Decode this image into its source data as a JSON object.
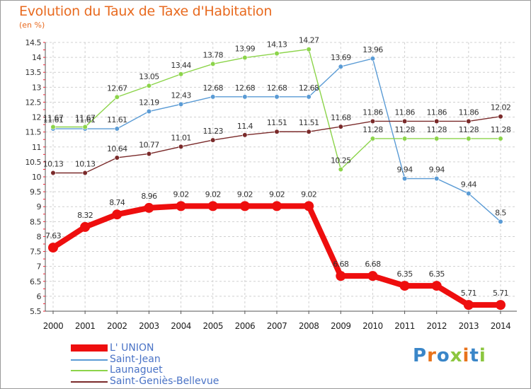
{
  "title": "Evolution du Taux de Taxe d'Habitation",
  "subtitle": "(en %)",
  "logo": {
    "letters": [
      "P",
      "r",
      "o",
      "x",
      "i",
      "t",
      "i"
    ],
    "colors": [
      "#3a86c8",
      "#e8731c",
      "#3a86c8",
      "#8cc63f",
      "#e8731c",
      "#3a86c8",
      "#8cc63f"
    ]
  },
  "chart_data": {
    "type": "line",
    "x": [
      "2000",
      "2001",
      "2002",
      "2003",
      "2004",
      "2005",
      "2006",
      "2007",
      "2008",
      "2009",
      "2010",
      "2011",
      "2012",
      "2013",
      "2014"
    ],
    "ylim": [
      5.5,
      14.5
    ],
    "yticks": [
      "5.5",
      "6",
      "6.5",
      "7",
      "7.5",
      "8",
      "8.5",
      "9",
      "9.5",
      "10",
      "10.5",
      "11",
      "11.5",
      "12",
      "12.5",
      "13",
      "13.5",
      "14",
      "14.5"
    ],
    "grid": true,
    "legend_position": "bottom-left",
    "series": [
      {
        "name": "Saint-Jean",
        "color": "#5a9bd5",
        "values": [
          11.61,
          11.61,
          11.61,
          12.19,
          12.43,
          12.68,
          12.68,
          12.68,
          12.68,
          13.69,
          13.96,
          9.94,
          9.94,
          9.44,
          8.5
        ],
        "labels": [
          "11.61",
          "11.61",
          "11.61",
          "12.19",
          "12.43",
          "12.68",
          "12.68",
          "12.68",
          "12.68",
          "13.69",
          "13.96",
          "9.94",
          "9.94",
          "9.44",
          "8.5"
        ]
      },
      {
        "name": "Launaguet",
        "color": "#8cd44a",
        "values": [
          11.67,
          11.67,
          12.67,
          13.05,
          13.44,
          13.78,
          13.99,
          14.13,
          14.27,
          10.25,
          11.28,
          11.28,
          11.28,
          11.28,
          11.28
        ],
        "labels": [
          "11.67",
          "11.67",
          "12.67",
          "13.05",
          "13.44",
          "13.78",
          "13.99",
          "14.13",
          "14.27",
          "10.25",
          "11.28",
          "11.28",
          "11.28",
          "11.28",
          "11.28"
        ]
      },
      {
        "name": "Saint-Geniès-Bellevue",
        "color": "#7a2a2a",
        "values": [
          10.13,
          10.13,
          10.64,
          10.77,
          11.01,
          11.23,
          11.4,
          11.51,
          11.51,
          11.68,
          11.86,
          11.86,
          11.86,
          11.86,
          12.02
        ],
        "labels": [
          "10.13",
          "10.13",
          "10.64",
          "10.77",
          "11.01",
          "11.23",
          "11.4",
          "11.51",
          "11.51",
          "11.68",
          "11.86",
          "11.86",
          "11.86",
          "11.86",
          "12.02"
        ]
      },
      {
        "name": "L' UNION",
        "color": "#ee0e0e",
        "values": [
          7.63,
          8.32,
          8.74,
          8.96,
          9.02,
          9.02,
          9.02,
          9.02,
          9.02,
          6.68,
          6.68,
          6.35,
          6.35,
          5.71,
          5.71
        ],
        "labels": [
          "7.63",
          "8.32",
          "8.74",
          "8.96",
          "9.02",
          "9.02",
          "9.02",
          "9.02",
          "9.02",
          "6.68",
          "6.68",
          "6.35",
          "6.35",
          "5.71",
          "5.71"
        ]
      }
    ]
  },
  "legend": [
    {
      "name": "L' UNION",
      "color": "#ee0e0e"
    },
    {
      "name": "Saint-Jean",
      "color": "#5a9bd5"
    },
    {
      "name": "Launaguet",
      "color": "#8cd44a"
    },
    {
      "name": "Saint-Geniès-Bellevue",
      "color": "#7a2a2a"
    }
  ]
}
